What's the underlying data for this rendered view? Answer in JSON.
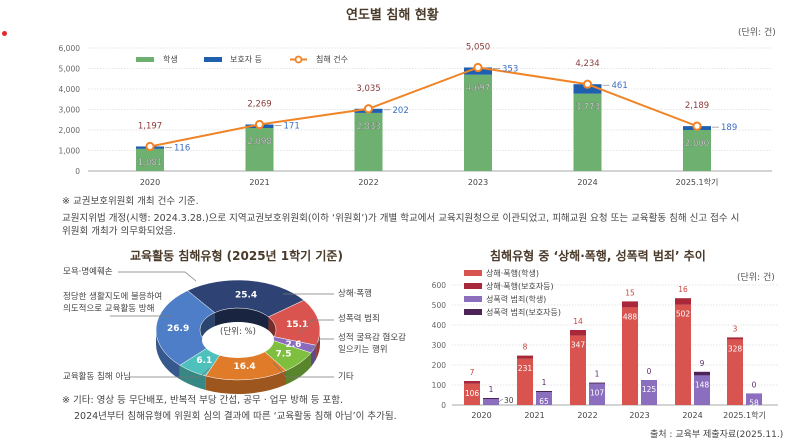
{
  "chart_data": [
    {
      "type": "bar",
      "title": "연도별 침해 현황",
      "unit": "(단위: 건)",
      "categories": [
        "2020",
        "2021",
        "2022",
        "2023",
        "2024",
        "2025.1학기"
      ],
      "yticks": [
        "0",
        "1,000",
        "2,000",
        "3,000",
        "4,000",
        "5,000",
        "6,000"
      ],
      "ylim": [
        0,
        6000
      ],
      "series": [
        {
          "name": "학생",
          "color": "#6db070",
          "values": [
            1081,
            2098,
            2833,
            4697,
            3773,
            2000
          ],
          "labels": [
            "1,081",
            "2,098",
            "2,833",
            "4,697",
            "3,773",
            "2,000"
          ]
        },
        {
          "name": "보호자 등",
          "color": "#1f5fae",
          "values": [
            116,
            171,
            202,
            353,
            461,
            189
          ],
          "labels": [
            "116",
            "171",
            "202",
            "353",
            "461",
            "189"
          ]
        },
        {
          "name": "침해 건수",
          "type": "line",
          "color": "#f08426",
          "values": [
            1197,
            2269,
            3035,
            5050,
            4234,
            2189
          ],
          "labels": [
            "1,197",
            "2,269",
            "3,035",
            "5,050",
            "4,234",
            "2,189"
          ]
        }
      ],
      "legend": "top"
    },
    {
      "type": "pie",
      "title": "교육활동 침해유형 (2025년 1학기 기준)",
      "center_label": "(단위: %)",
      "slices": [
        {
          "name": "모욕·명예훼손",
          "value": 25.4,
          "color": "#2e4274"
        },
        {
          "name": "상해·폭행",
          "value": 15.1,
          "color": "#d9544f"
        },
        {
          "name": "성폭력 범죄",
          "value": 2.6,
          "color": "#8a6bbf"
        },
        {
          "name": "성적 굴욕감 혐오감 일으키는 행위",
          "value": 7.5,
          "color": "#7fbf3f"
        },
        {
          "name": "기타",
          "value": 16.4,
          "color": "#e07b29"
        },
        {
          "name": "교육활동 침해 아님",
          "value": 6.1,
          "color": "#4fc1bc"
        },
        {
          "name": "정당한 생활지도에 불응하여 의도적으로 교육활동 방해",
          "value": 26.9,
          "color": "#4f7ec8"
        }
      ]
    },
    {
      "type": "bar",
      "title": "침해유형 중 ‘상해·폭행, 성폭력 범죄’ 추이",
      "unit": "(단위: 건)",
      "categories": [
        "2020",
        "2021",
        "2022",
        "2023",
        "2024",
        "2025.1학기"
      ],
      "yticks": [
        "0",
        "100",
        "200",
        "300",
        "400",
        "500",
        "600"
      ],
      "ylim": [
        0,
        600
      ],
      "series": [
        {
          "name": "상해·폭행(학생)",
          "color": "#d9544f",
          "values": [
            106,
            231,
            347,
            488,
            502,
            328
          ]
        },
        {
          "name": "상해·폭행(보호자등)",
          "color": "#a8283a",
          "values": [
            7,
            8,
            14,
            15,
            16,
            3
          ]
        },
        {
          "name": "성폭력 범죄(학생)",
          "color": "#8b6fbe",
          "values": [
            30,
            65,
            107,
            125,
            148,
            58
          ]
        },
        {
          "name": "성폭력 범죄(보호자등)",
          "color": "#4e2358",
          "values": [
            1,
            1,
            1,
            0,
            9,
            0
          ]
        }
      ],
      "legend": "top-left"
    }
  ],
  "notes": {
    "top_note1": "※ 교권보호위원회 개최 건수 기준.",
    "top_note2": "교원지위법 개정(시행: 2024.3.28.)으로 지역교권보호위원회(이하 ‘위원회’)가 개별 학교에서 교육지원청으로 이관되었고, 피해교원 요청 또는 교육활동 침해 신고 접수 시",
    "top_note3": "위원회 개최가 의무화되었음.",
    "pie_note1": "※ 기타: 영상 등 무단배포, 반복적 부당 간섭, 공무 · 업무 방해 등 포함.",
    "pie_note2": "2024년부터 침해유형에 위원회 심의 결과에 따른 ‘교육활동 침해 아님’이 추가됨.",
    "source": "출처 : 교육부 제출자료(2025.11.)"
  },
  "pie_labels": {
    "l1": "모욕·명예훼손",
    "l2a": "정당한 생활지도에 불응하여",
    "l2b": "의도적으로 교육활동 방해",
    "l3": "교육활동 침해 아님",
    "r1": "상해·폭행",
    "r2": "성폭력 범죄",
    "r3a": "성적 굴욕감 혐오감",
    "r3b": "일으키는 행위",
    "r4": "기타"
  }
}
